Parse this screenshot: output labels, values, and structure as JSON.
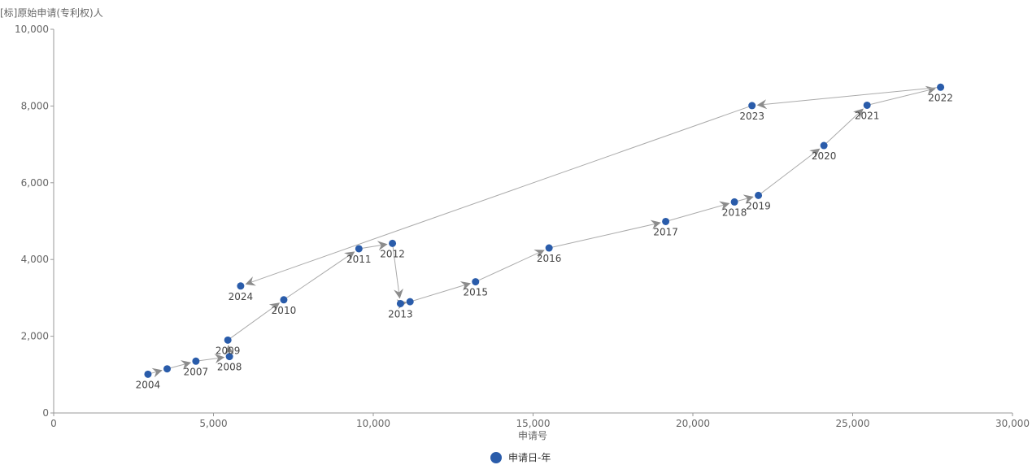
{
  "chart_data": {
    "type": "scatter",
    "ylabel": "[标]原始申请(专利权)人",
    "xlabel": "申请号",
    "xlim": [
      0,
      30000
    ],
    "ylim": [
      0,
      10000
    ],
    "xticks": [
      "0",
      "5,000",
      "10,000",
      "15,000",
      "20,000",
      "25,000",
      "30,000"
    ],
    "yticks": [
      "0",
      "2,000",
      "4,000",
      "6,000",
      "8,000",
      "10,000"
    ],
    "grid": false,
    "legend_position": "bottom-center",
    "series": [
      {
        "name": "申请日-年",
        "color": "#2a5caa",
        "connected": true,
        "arrows": true,
        "points": [
          {
            "year": "2004",
            "x": 2950,
            "y": 1010
          },
          {
            "year": "",
            "x": 3550,
            "y": 1150
          },
          {
            "year": "2007",
            "x": 4450,
            "y": 1350
          },
          {
            "year": "2008",
            "x": 5500,
            "y": 1470
          },
          {
            "year": "2009",
            "x": 5450,
            "y": 1900
          },
          {
            "year": "2010",
            "x": 7200,
            "y": 2950
          },
          {
            "year": "2011",
            "x": 9550,
            "y": 4280
          },
          {
            "year": "2012",
            "x": 10600,
            "y": 4420
          },
          {
            "year": "2013",
            "x": 10850,
            "y": 2850
          },
          {
            "year": "",
            "x": 11150,
            "y": 2900
          },
          {
            "year": "2015",
            "x": 13200,
            "y": 3420
          },
          {
            "year": "2016",
            "x": 15500,
            "y": 4300
          },
          {
            "year": "2017",
            "x": 19150,
            "y": 4990
          },
          {
            "year": "2018",
            "x": 21300,
            "y": 5500
          },
          {
            "year": "2019",
            "x": 22050,
            "y": 5670
          },
          {
            "year": "2020",
            "x": 24100,
            "y": 6970
          },
          {
            "year": "2021",
            "x": 25450,
            "y": 8020
          },
          {
            "year": "2022",
            "x": 27750,
            "y": 8490
          },
          {
            "year": "2023",
            "x": 21850,
            "y": 8010
          },
          {
            "year": "2024",
            "x": 5850,
            "y": 3310
          }
        ]
      }
    ]
  }
}
